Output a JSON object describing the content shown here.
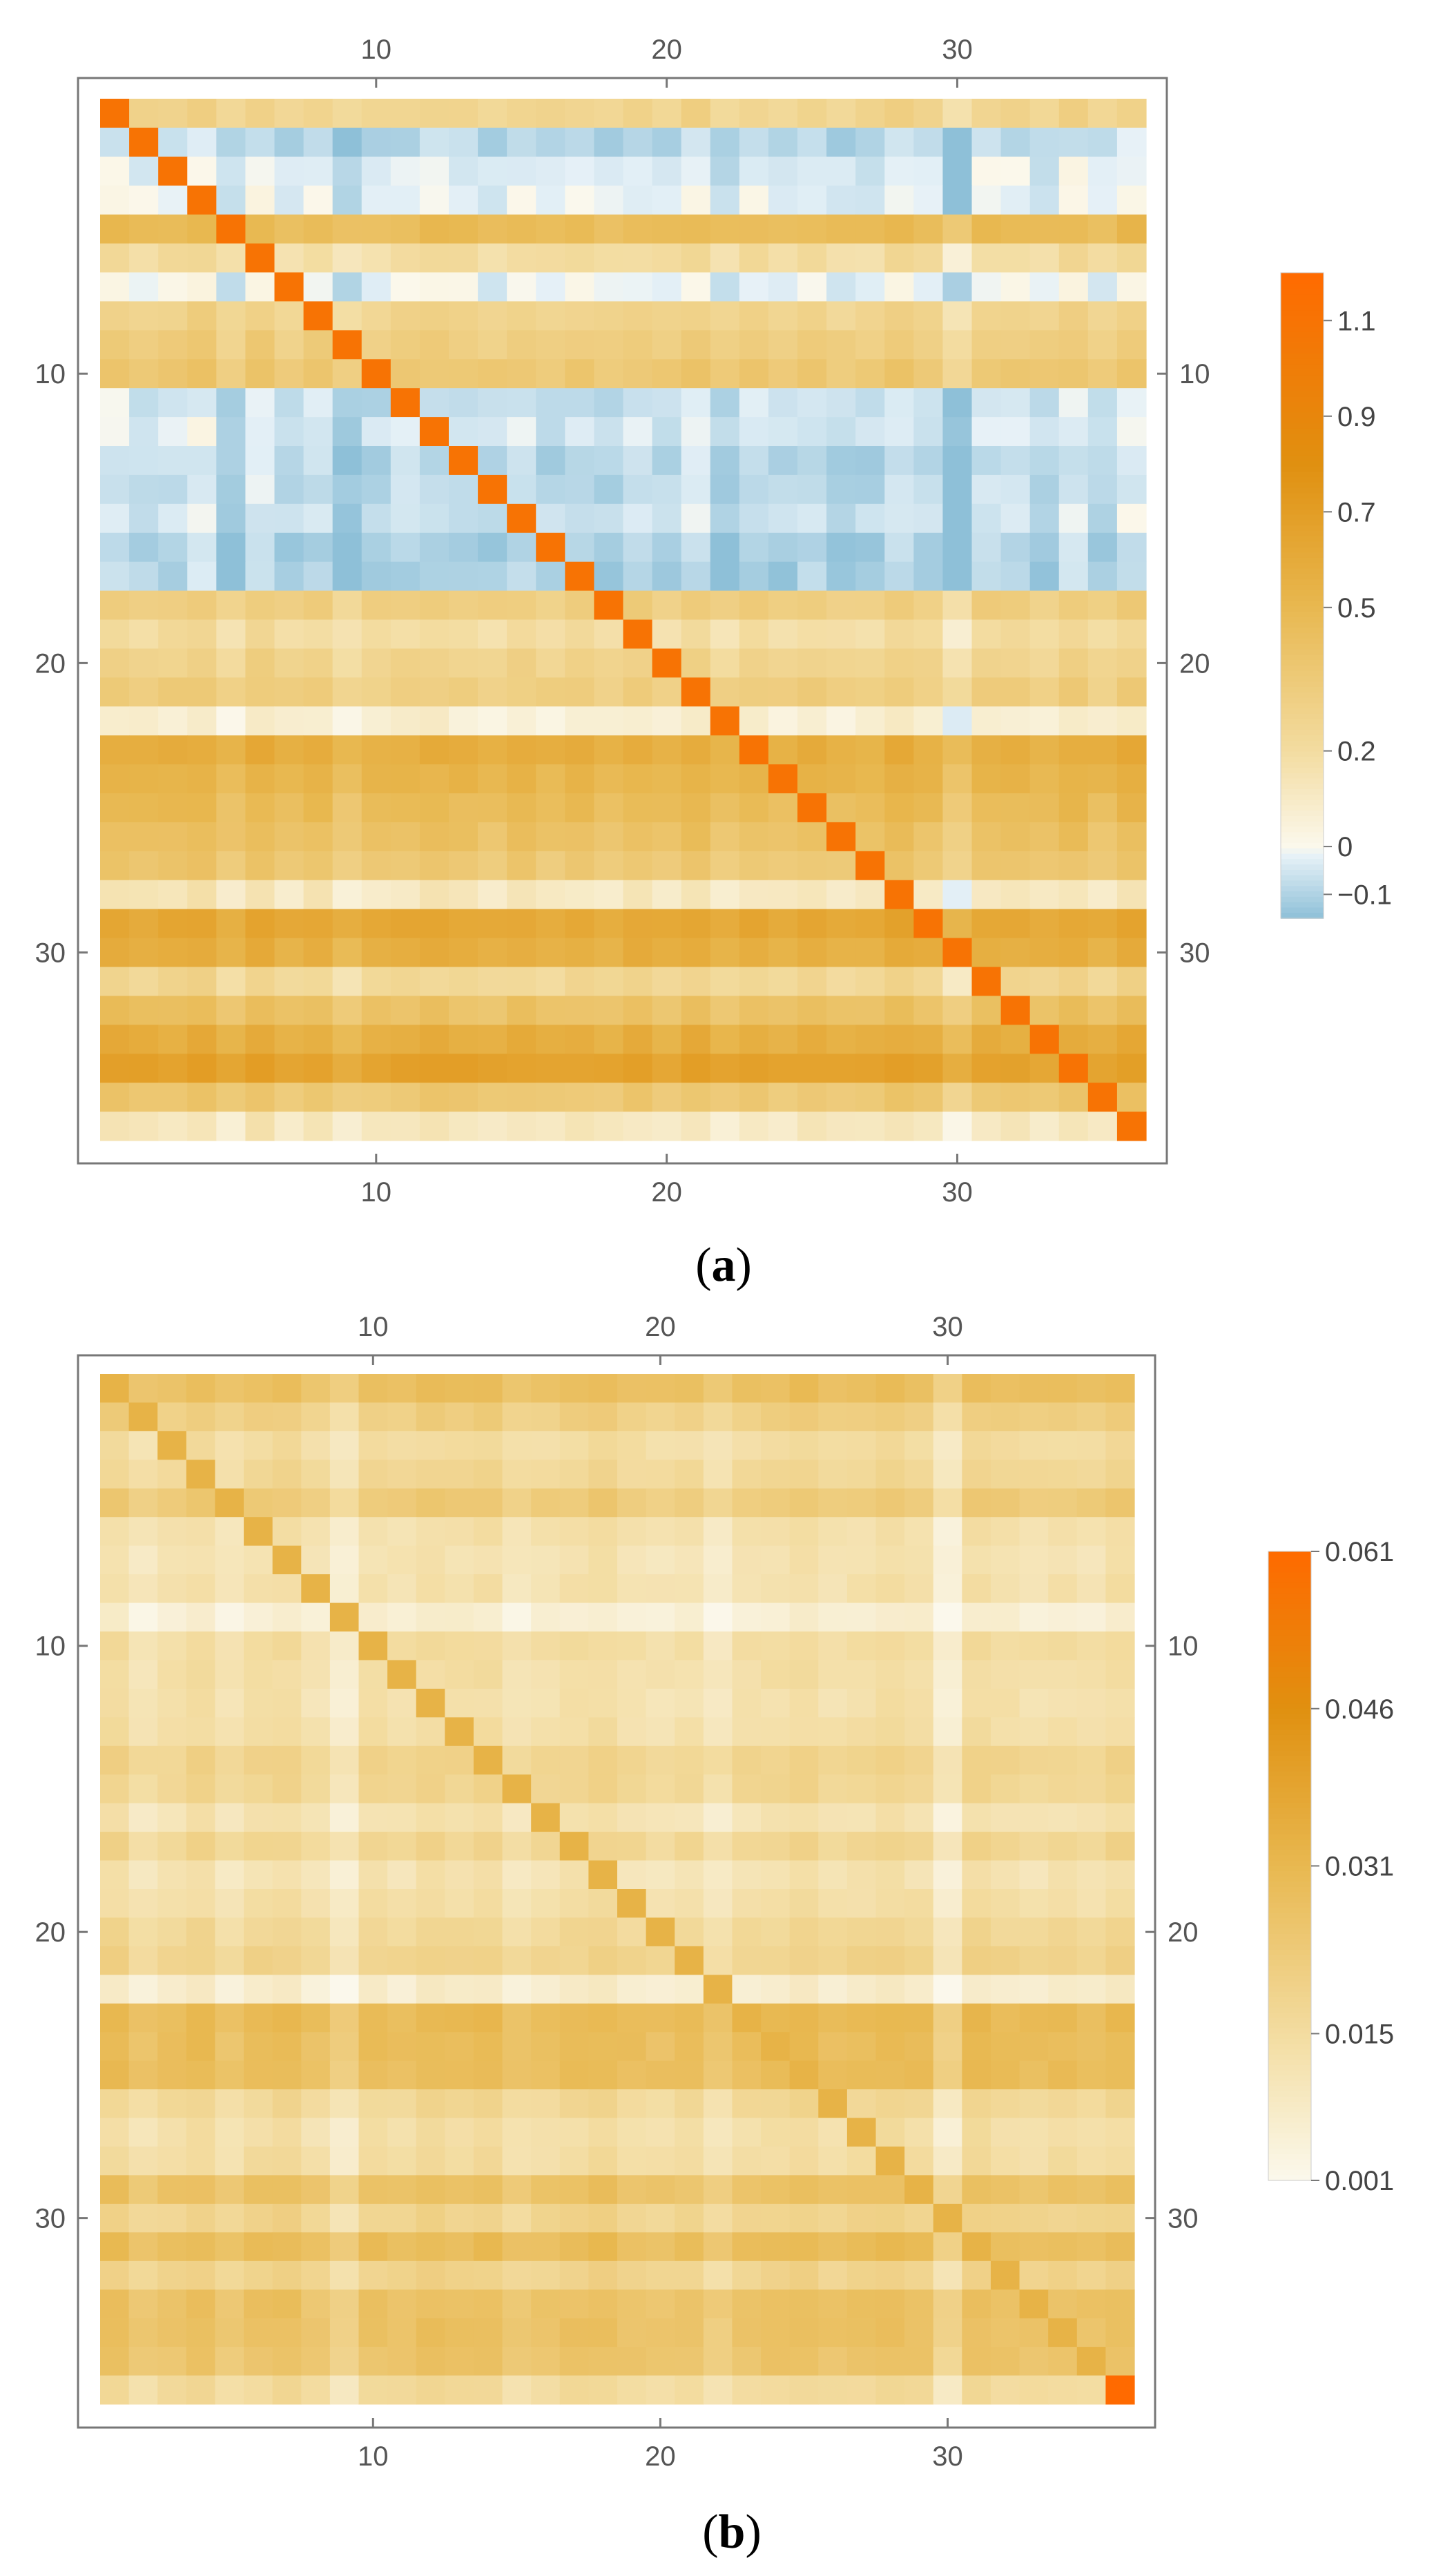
{
  "chart_data": [
    {
      "type": "heatmap",
      "panel_label_open": "(",
      "panel_label_letter": "a",
      "panel_label_close": ")",
      "title": "",
      "xlabel": "",
      "ylabel": "",
      "size": 36,
      "xlim": [
        0.5,
        36.5
      ],
      "ylim": [
        0.5,
        36.5
      ],
      "tick_values": [
        10,
        20,
        30
      ],
      "tick_labels": [
        "10",
        "20",
        "30"
      ],
      "diagonal_value": 1.1,
      "row_base": [
        0.25,
        -0.1,
        -0.05,
        -0.04,
        0.45,
        0.18,
        -0.03,
        0.25,
        0.3,
        0.35,
        -0.08,
        -0.06,
        -0.1,
        -0.09,
        -0.08,
        -0.12,
        -0.12,
        0.3,
        0.18,
        0.25,
        0.3,
        0.05,
        0.55,
        0.5,
        0.45,
        0.4,
        0.35,
        0.1,
        0.6,
        0.55,
        0.22,
        0.4,
        0.55,
        0.65,
        0.35,
        0.1
      ],
      "col_base": [
        0.05,
        0.02,
        0.03,
        0.06,
        -0.02,
        0.05,
        0.0,
        0.03,
        -0.05,
        0.0,
        0.02,
        0.03,
        0.02,
        0.0,
        0.03,
        0.0,
        0.02,
        0.0,
        0.03,
        0.0,
        0.05,
        -0.02,
        0.03,
        0.0,
        0.03,
        0.0,
        0.0,
        0.05,
        0.02,
        -0.1,
        0.03,
        0.03,
        0.0,
        0.05,
        0.0,
        0.06
      ],
      "colorbar": {
        "ticks": [
          1.1,
          0.9,
          0.7,
          0.5,
          0.2,
          0,
          -0.1
        ],
        "tick_labels": [
          "1.1",
          "0.9",
          "0.7",
          "0.5",
          "0.2",
          "0",
          "−0.1"
        ],
        "range": [
          -0.15,
          1.2
        ]
      },
      "colors": {
        "negative": "#8ec0d8",
        "zero": "#fbf8ec",
        "low": "#f3dca0",
        "mid": "#e8b850",
        "high": "#e09010",
        "top": "#ff6a00"
      }
    },
    {
      "type": "heatmap",
      "panel_label_open": "(",
      "panel_label_letter": "b",
      "panel_label_close": ")",
      "title": "",
      "xlabel": "",
      "ylabel": "",
      "size": 36,
      "xlim": [
        0.5,
        36.5
      ],
      "ylim": [
        0.5,
        36.5
      ],
      "tick_values": [
        10,
        20,
        30
      ],
      "tick_labels": [
        "10",
        "20",
        "30"
      ],
      "diagonal_value": 0.033,
      "last_diagonal_value": 0.061,
      "row_base": [
        0.027,
        0.02,
        0.014,
        0.016,
        0.022,
        0.012,
        0.011,
        0.012,
        0.005,
        0.014,
        0.013,
        0.012,
        0.013,
        0.018,
        0.017,
        0.011,
        0.017,
        0.011,
        0.013,
        0.016,
        0.018,
        0.006,
        0.029,
        0.028,
        0.028,
        0.016,
        0.013,
        0.014,
        0.026,
        0.018,
        0.028,
        0.018,
        0.026,
        0.026,
        0.025,
        0.015
      ],
      "col_base": [
        0.002,
        -0.002,
        0.0,
        0.002,
        -0.002,
        0.001,
        0.002,
        -0.001,
        -0.006,
        0.001,
        0.0,
        0.002,
        0.001,
        0.002,
        -0.002,
        0.0,
        0.001,
        0.002,
        0.0,
        -0.001,
        0.0,
        -0.004,
        0.0,
        0.001,
        0.002,
        0.0,
        0.001,
        0.002,
        0.001,
        -0.007,
        0.002,
        0.001,
        0.0,
        0.001,
        0.0,
        0.002
      ],
      "colorbar": {
        "ticks": [
          0.061,
          0.046,
          0.031,
          0.015,
          0.001
        ],
        "tick_labels": [
          "0.061",
          "0.046",
          "0.031",
          "0.015",
          "0.001"
        ],
        "range": [
          0.001,
          0.061
        ]
      },
      "colors": {
        "zero": "#fbf8ec",
        "low": "#f3dca0",
        "mid": "#e8b850",
        "high": "#e09010",
        "top": "#ff6a00"
      }
    }
  ]
}
